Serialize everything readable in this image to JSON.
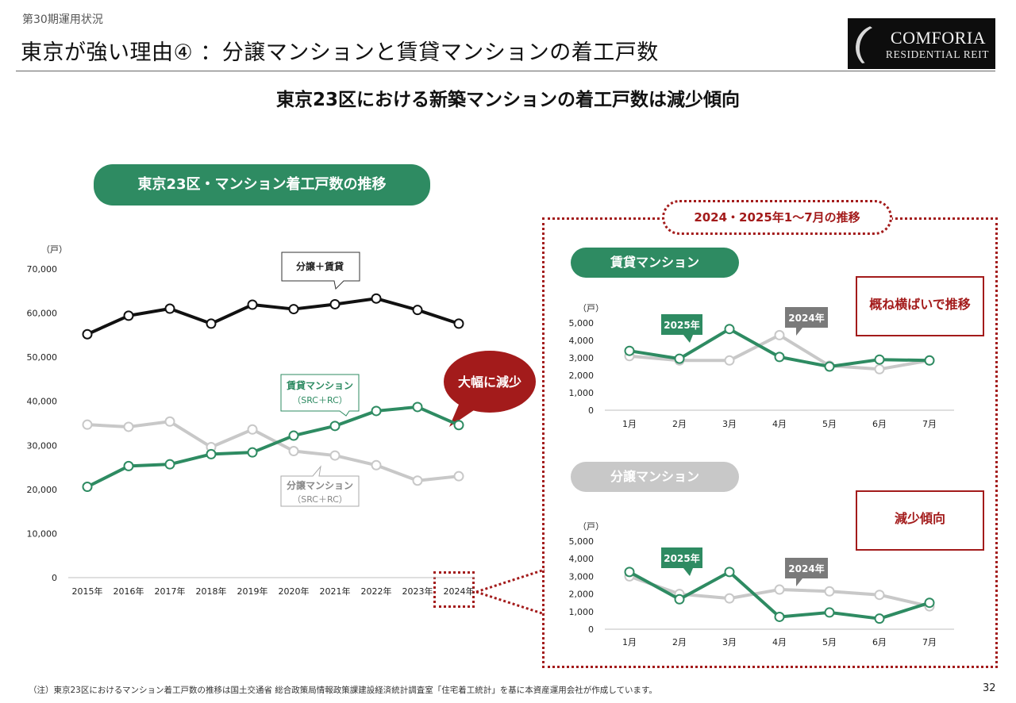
{
  "header": {
    "period": "第30期運用状況",
    "title": "東京が強い理由④ ：分譲マンションと賃貸マンションの着工戸数",
    "logo_line1": "COMFORIA",
    "logo_line2": "RESIDENTIAL REIT"
  },
  "headline": "東京23区における新築マンションの着工戸数は減少傾向",
  "main_chart": {
    "pill_label": "東京23区・マンション着工戸数の推移",
    "unit": "（戸）",
    "callout_total": "分譲＋賃貸",
    "callout_rent_line1": "賃貸マンション",
    "callout_rent_line2": "（SRC＋RC）",
    "callout_sale_line1": "分譲マンション",
    "callout_sale_line2": "（SRC＋RC）",
    "bubble": "大幅に減少"
  },
  "right_panel": {
    "period_label": "2024・2025年1～7月の推移",
    "rent_pill": "賃貸マンション",
    "sale_pill": "分譲マンション",
    "rent_callout": "概ね横ばいで推移",
    "sale_callout": "減少傾向",
    "unit": "（戸）",
    "tag_2025": "2025年",
    "tag_2024": "2024年"
  },
  "footnote": "（注）東京23区におけるマンション着工戸数の推移は国土交通省 総合政策局情報政策課建設経済統計調査室「住宅着工統計」を基に本資産運用会社が作成しています。",
  "page_number": "32",
  "colors": {
    "green": "#2e8b62",
    "gray": "#c8c8c8",
    "black": "#111111",
    "red": "#a31b1b"
  },
  "chart_data": [
    {
      "type": "line",
      "categories": [
        "2015年",
        "2016年",
        "2017年",
        "2018年",
        "2019年",
        "2020年",
        "2021年",
        "2022年",
        "2023年",
        "2024年"
      ],
      "ylim": [
        0,
        70000
      ],
      "yticks": [
        "0",
        "10,000",
        "20,000",
        "30,000",
        "40,000",
        "50,000",
        "60,000",
        "70,000"
      ],
      "ylabel": "（戸）",
      "series": [
        {
          "name": "分譲＋賃貸",
          "color": "#111111",
          "values": [
            55200,
            59400,
            61000,
            57600,
            61900,
            60900,
            62000,
            63300,
            60700,
            57600
          ]
        },
        {
          "name": "賃貸マンション（SRC＋RC）",
          "color": "#2e8b62",
          "values": [
            20600,
            25300,
            25700,
            28000,
            28400,
            32200,
            34400,
            37800,
            38700,
            34600
          ]
        },
        {
          "name": "分譲マンション（SRC＋RC）",
          "color": "#c8c8c8",
          "values": [
            34700,
            34200,
            35400,
            29600,
            33600,
            28700,
            27700,
            25500,
            22000,
            23000
          ]
        }
      ]
    },
    {
      "type": "line",
      "categories": [
        "1月",
        "2月",
        "3月",
        "4月",
        "5月",
        "6月",
        "7月"
      ],
      "ylim": [
        0,
        5000
      ],
      "yticks": [
        "0",
        "1,000",
        "2,000",
        "3,000",
        "4,000",
        "5,000"
      ],
      "ylabel": "（戸）",
      "series": [
        {
          "name": "2024年",
          "color": "#c8c8c8",
          "values": [
            3100,
            2850,
            2850,
            4300,
            2550,
            2350,
            2850
          ]
        },
        {
          "name": "2025年",
          "color": "#2e8b62",
          "values": [
            3400,
            2950,
            4650,
            3050,
            2500,
            2900,
            2850
          ]
        }
      ]
    },
    {
      "type": "line",
      "categories": [
        "1月",
        "2月",
        "3月",
        "4月",
        "5月",
        "6月",
        "7月"
      ],
      "ylim": [
        0,
        5000
      ],
      "yticks": [
        "0",
        "1,000",
        "2,000",
        "3,000",
        "4,000",
        "5,000"
      ],
      "ylabel": "（戸）",
      "series": [
        {
          "name": "2024年",
          "color": "#c8c8c8",
          "values": [
            3000,
            2000,
            1750,
            2250,
            2150,
            1950,
            1300
          ]
        },
        {
          "name": "2025年",
          "color": "#2e8b62",
          "values": [
            3250,
            1700,
            3250,
            700,
            950,
            600,
            1500
          ]
        }
      ]
    }
  ]
}
